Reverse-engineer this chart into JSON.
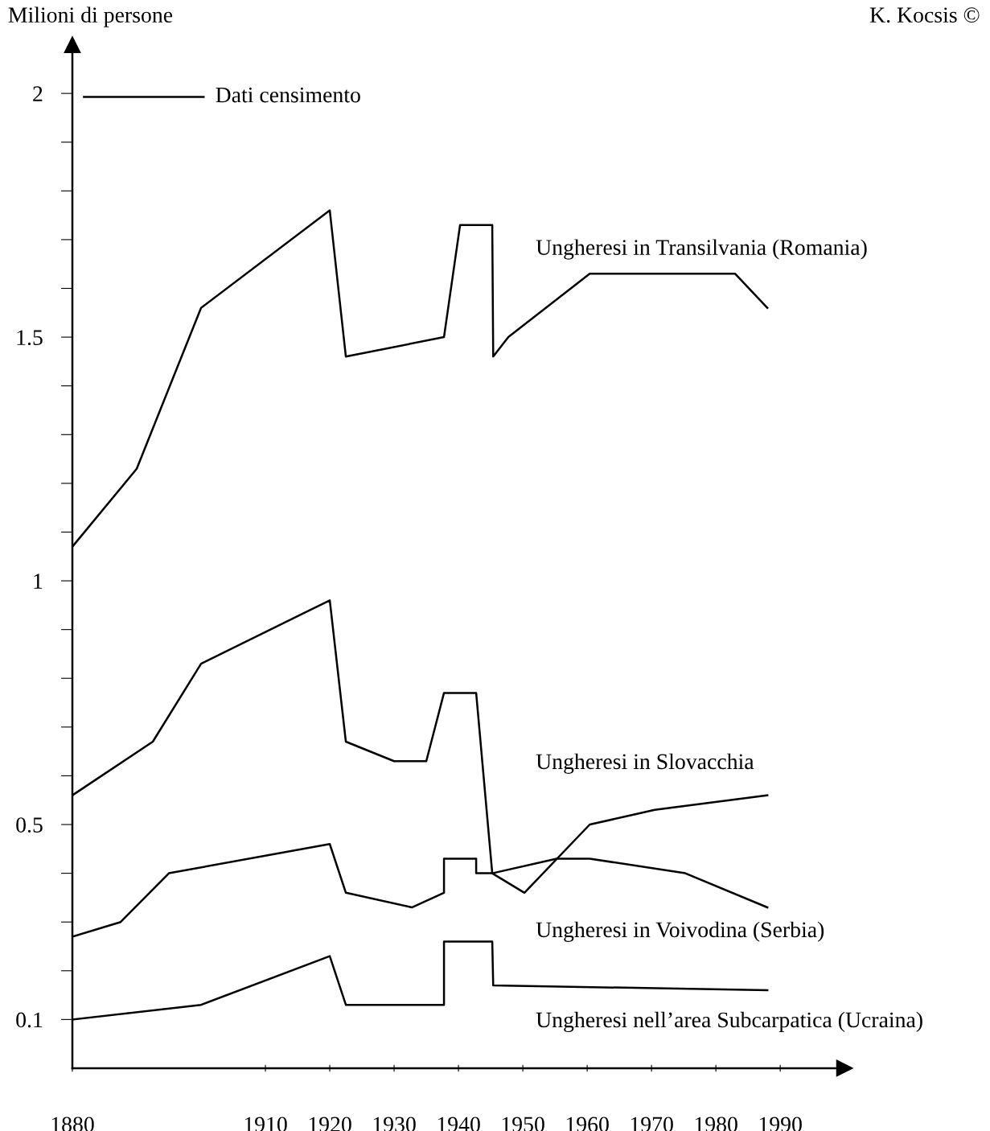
{
  "chart_data": {
    "type": "line",
    "ylabel": "Milioni di persone",
    "annotations": [
      "Dati censimento",
      "K. Kocsis ©"
    ],
    "xlim": [
      1880,
      2000
    ],
    "xticks": [
      1880,
      1910,
      1920,
      1930,
      1940,
      1950,
      1960,
      1970,
      1980,
      1990
    ],
    "ylim": [
      0,
      2.1
    ],
    "yticks": [
      {
        "value": 0.1,
        "label": "0.1"
      },
      {
        "value": 0.2,
        "label": null
      },
      {
        "value": 0.3,
        "label": null
      },
      {
        "value": 0.4,
        "label": null
      },
      {
        "value": 0.5,
        "label": "0.5"
      },
      {
        "value": 0.6,
        "label": null
      },
      {
        "value": 0.7,
        "label": null
      },
      {
        "value": 0.8,
        "label": null
      },
      {
        "value": 0.9,
        "label": null
      },
      {
        "value": 1,
        "label": "1"
      },
      {
        "value": 1.1,
        "label": null
      },
      {
        "value": 1.2,
        "label": null
      },
      {
        "value": 1.3,
        "label": null
      },
      {
        "value": 1.4,
        "label": null
      },
      {
        "value": 1.5,
        "label": "1.5"
      },
      {
        "value": 1.6,
        "label": null
      },
      {
        "value": 1.7,
        "label": null
      },
      {
        "value": 1.8,
        "label": null
      },
      {
        "value": 1.9,
        "label": null
      },
      {
        "value": 2,
        "label": "2"
      }
    ],
    "grid": false,
    "legend": false,
    "marker": "none",
    "line_style": "solid",
    "series": [
      {
        "name": "Ungheresi in Transilvania (Romania)",
        "color": "#000000",
        "x": [
          1880,
          1890,
          1900,
          1920,
          1922.5,
          1937.75,
          1940.25,
          1945.25,
          1945.4,
          1947.75,
          1960.4,
          1983,
          1988
        ],
        "values": [
          1.07,
          1.23,
          1.56,
          1.76,
          1.46,
          1.5,
          1.73,
          1.73,
          1.46,
          1.5,
          1.63,
          1.63,
          1.56
        ]
      },
      {
        "name": "Ungheresi in Slovacchia",
        "color": "#000000",
        "x": [
          1880,
          1892.5,
          1900,
          1920,
          1922.5,
          1930,
          1935,
          1937.75,
          1942.75,
          1945.25,
          1950.25,
          1960.4,
          1970.5,
          1988
        ],
        "values": [
          0.56,
          0.67,
          0.83,
          0.96,
          0.67,
          0.63,
          0.63,
          0.77,
          0.77,
          0.4,
          0.36,
          0.5,
          0.53,
          0.56
        ]
      },
      {
        "name": "Ungheresi in Voivodina (Serbia)",
        "color": "#000000",
        "x": [
          1880,
          1887.5,
          1895,
          1920,
          1922.5,
          1932.75,
          1937.75,
          1937.75,
          1942.75,
          1942.75,
          1945.25,
          1955.25,
          1960.4,
          1975.25,
          1988
        ],
        "values": [
          0.27,
          0.3,
          0.4,
          0.46,
          0.36,
          0.33,
          0.36,
          0.43,
          0.43,
          0.4,
          0.4,
          0.43,
          0.43,
          0.4,
          0.33
        ]
      },
      {
        "name": "Ungheresi nell’area Subcarpatica (Ucraina)",
        "color": "#000000",
        "x": [
          1880,
          1900,
          1920,
          1922.5,
          1937.75,
          1937.75,
          1945.25,
          1945.4,
          1988
        ],
        "values": [
          0.1,
          0.13,
          0.23,
          0.13,
          0.13,
          0.26,
          0.26,
          0.17,
          0.16
        ]
      }
    ]
  }
}
